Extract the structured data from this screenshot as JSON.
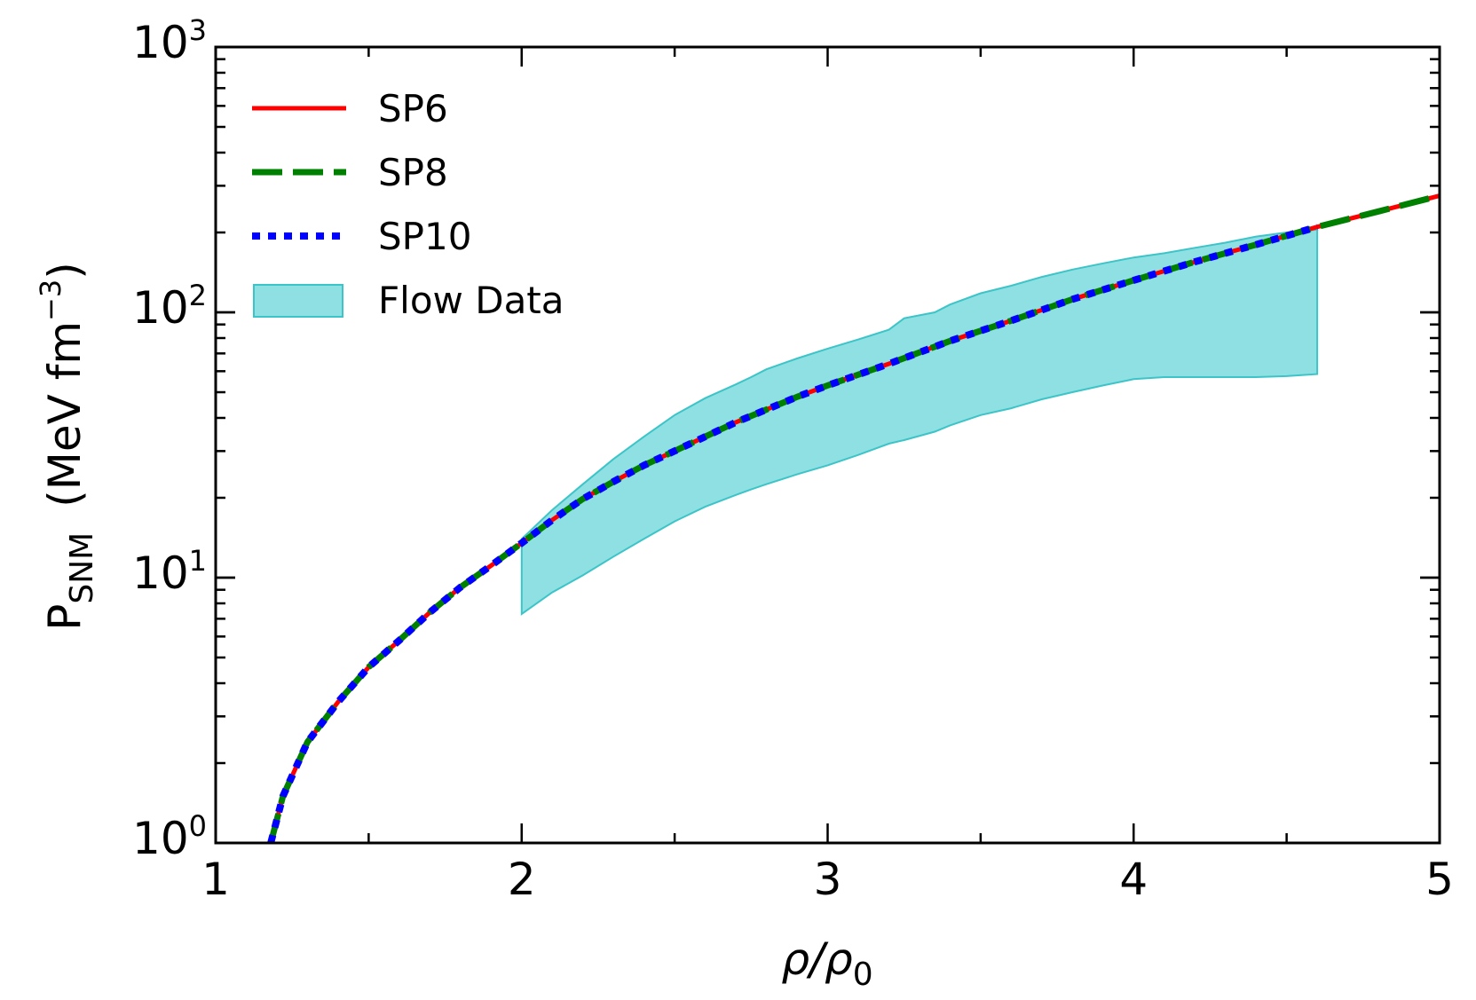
{
  "chart_data": {
    "type": "line",
    "xlabel": "ρ/ρ",
    "xlabel_sub": "0",
    "ylabel": "P",
    "ylabel_sub": "SNM",
    "ylabel_units": "(MeV fm",
    "ylabel_units_exp": "−3",
    "ylabel_units_close": ")",
    "xlim": [
      1,
      5
    ],
    "ylim": [
      1,
      1000
    ],
    "yscale": "log",
    "x_ticks": [
      {
        "value": 1,
        "label": "1"
      },
      {
        "value": 2,
        "label": "2"
      },
      {
        "value": 3,
        "label": "3"
      },
      {
        "value": 4,
        "label": "4"
      },
      {
        "value": 5,
        "label": "5"
      }
    ],
    "y_ticks": [
      {
        "value": 1,
        "base": "10",
        "exp": "0"
      },
      {
        "value": 10,
        "base": "10",
        "exp": "1"
      },
      {
        "value": 100,
        "base": "10",
        "exp": "2"
      },
      {
        "value": 1000,
        "base": "10",
        "exp": "3"
      }
    ],
    "grid": false,
    "legend_position": "top-left",
    "series": [
      {
        "name": "SP6",
        "color": "#ff0000",
        "style": "solid",
        "x": [
          1.18,
          1.22,
          1.3,
          1.4,
          1.5,
          1.6,
          1.7,
          1.8,
          1.9,
          2.0,
          2.1,
          2.2,
          2.3,
          2.4,
          2.5,
          2.6,
          2.7,
          2.8,
          2.9,
          3.0,
          3.2,
          3.4,
          3.6,
          3.8,
          4.0,
          4.2,
          4.4,
          4.6,
          4.8,
          5.0
        ],
        "y": [
          1.0,
          1.5,
          2.4,
          3.4,
          4.6,
          5.8,
          7.4,
          9.2,
          11.1,
          13.5,
          16.5,
          19.8,
          23.0,
          26.5,
          30.0,
          34.0,
          38.5,
          43.0,
          48.0,
          53.0,
          64.0,
          78.0,
          93.0,
          112.0,
          132.0,
          155.0,
          180.0,
          210.0,
          240.0,
          275.0
        ]
      },
      {
        "name": "SP8",
        "color": "#008000",
        "style": "dashed",
        "x": [
          1.18,
          1.22,
          1.3,
          1.4,
          1.5,
          1.6,
          1.7,
          1.8,
          1.9,
          2.0,
          2.1,
          2.2,
          2.3,
          2.4,
          2.5,
          2.6,
          2.7,
          2.8,
          2.9,
          3.0,
          3.2,
          3.4,
          3.6,
          3.8,
          4.0,
          4.2,
          4.4,
          4.6,
          4.8,
          5.0
        ],
        "y": [
          1.0,
          1.5,
          2.4,
          3.4,
          4.6,
          5.8,
          7.4,
          9.2,
          11.1,
          13.5,
          16.5,
          19.8,
          23.0,
          26.5,
          30.0,
          34.0,
          38.5,
          43.0,
          48.0,
          53.0,
          64.0,
          78.0,
          93.0,
          112.0,
          132.0,
          155.0,
          180.0,
          210.0,
          240.0,
          275.0
        ]
      },
      {
        "name": "SP10",
        "color": "#0000ff",
        "style": "dotted",
        "x": [
          1.18,
          1.22,
          1.3,
          1.4,
          1.5,
          1.6,
          1.7,
          1.8,
          1.9,
          2.0,
          2.1,
          2.2,
          2.3,
          2.4,
          2.5,
          2.6,
          2.7,
          2.8,
          2.9,
          3.0,
          3.2,
          3.4,
          3.6,
          3.8,
          4.0,
          4.2,
          4.4,
          4.6
        ],
        "y": [
          1.0,
          1.5,
          2.4,
          3.4,
          4.6,
          5.8,
          7.4,
          9.2,
          11.1,
          13.5,
          16.5,
          19.8,
          23.0,
          26.5,
          30.0,
          34.0,
          38.5,
          43.0,
          48.0,
          53.0,
          64.0,
          78.0,
          93.0,
          112.0,
          132.0,
          155.0,
          180.0,
          210.0
        ]
      }
    ],
    "band": {
      "name": "Flow Data",
      "color": "#5fd3d6",
      "edge_color": "#3cc4c8",
      "x": [
        2.0,
        2.1,
        2.2,
        2.3,
        2.4,
        2.5,
        2.6,
        2.7,
        2.75,
        2.8,
        2.9,
        3.0,
        3.1,
        3.2,
        3.25,
        3.35,
        3.4,
        3.5,
        3.6,
        3.7,
        3.8,
        3.9,
        4.0,
        4.1,
        4.2,
        4.3,
        4.4,
        4.5,
        4.6
      ],
      "upper": [
        14.0,
        18.0,
        22.5,
        28.0,
        34.0,
        41.0,
        47.5,
        53.5,
        57.0,
        61.0,
        67.0,
        73.0,
        79.0,
        86.0,
        95.0,
        100.0,
        107.0,
        118.0,
        126.0,
        136.0,
        145.0,
        153.0,
        161.0,
        167.0,
        175.0,
        183.0,
        193.0,
        200.0,
        205.0
      ],
      "lower": [
        7.3,
        8.8,
        10.2,
        12.0,
        14.0,
        16.3,
        18.5,
        20.5,
        21.5,
        22.5,
        24.5,
        26.5,
        29.0,
        32.0,
        33.0,
        35.5,
        37.5,
        41.0,
        43.5,
        47.0,
        50.0,
        53.0,
        56.0,
        57.0,
        57.0,
        57.0,
        57.0,
        57.5,
        58.5
      ]
    }
  }
}
